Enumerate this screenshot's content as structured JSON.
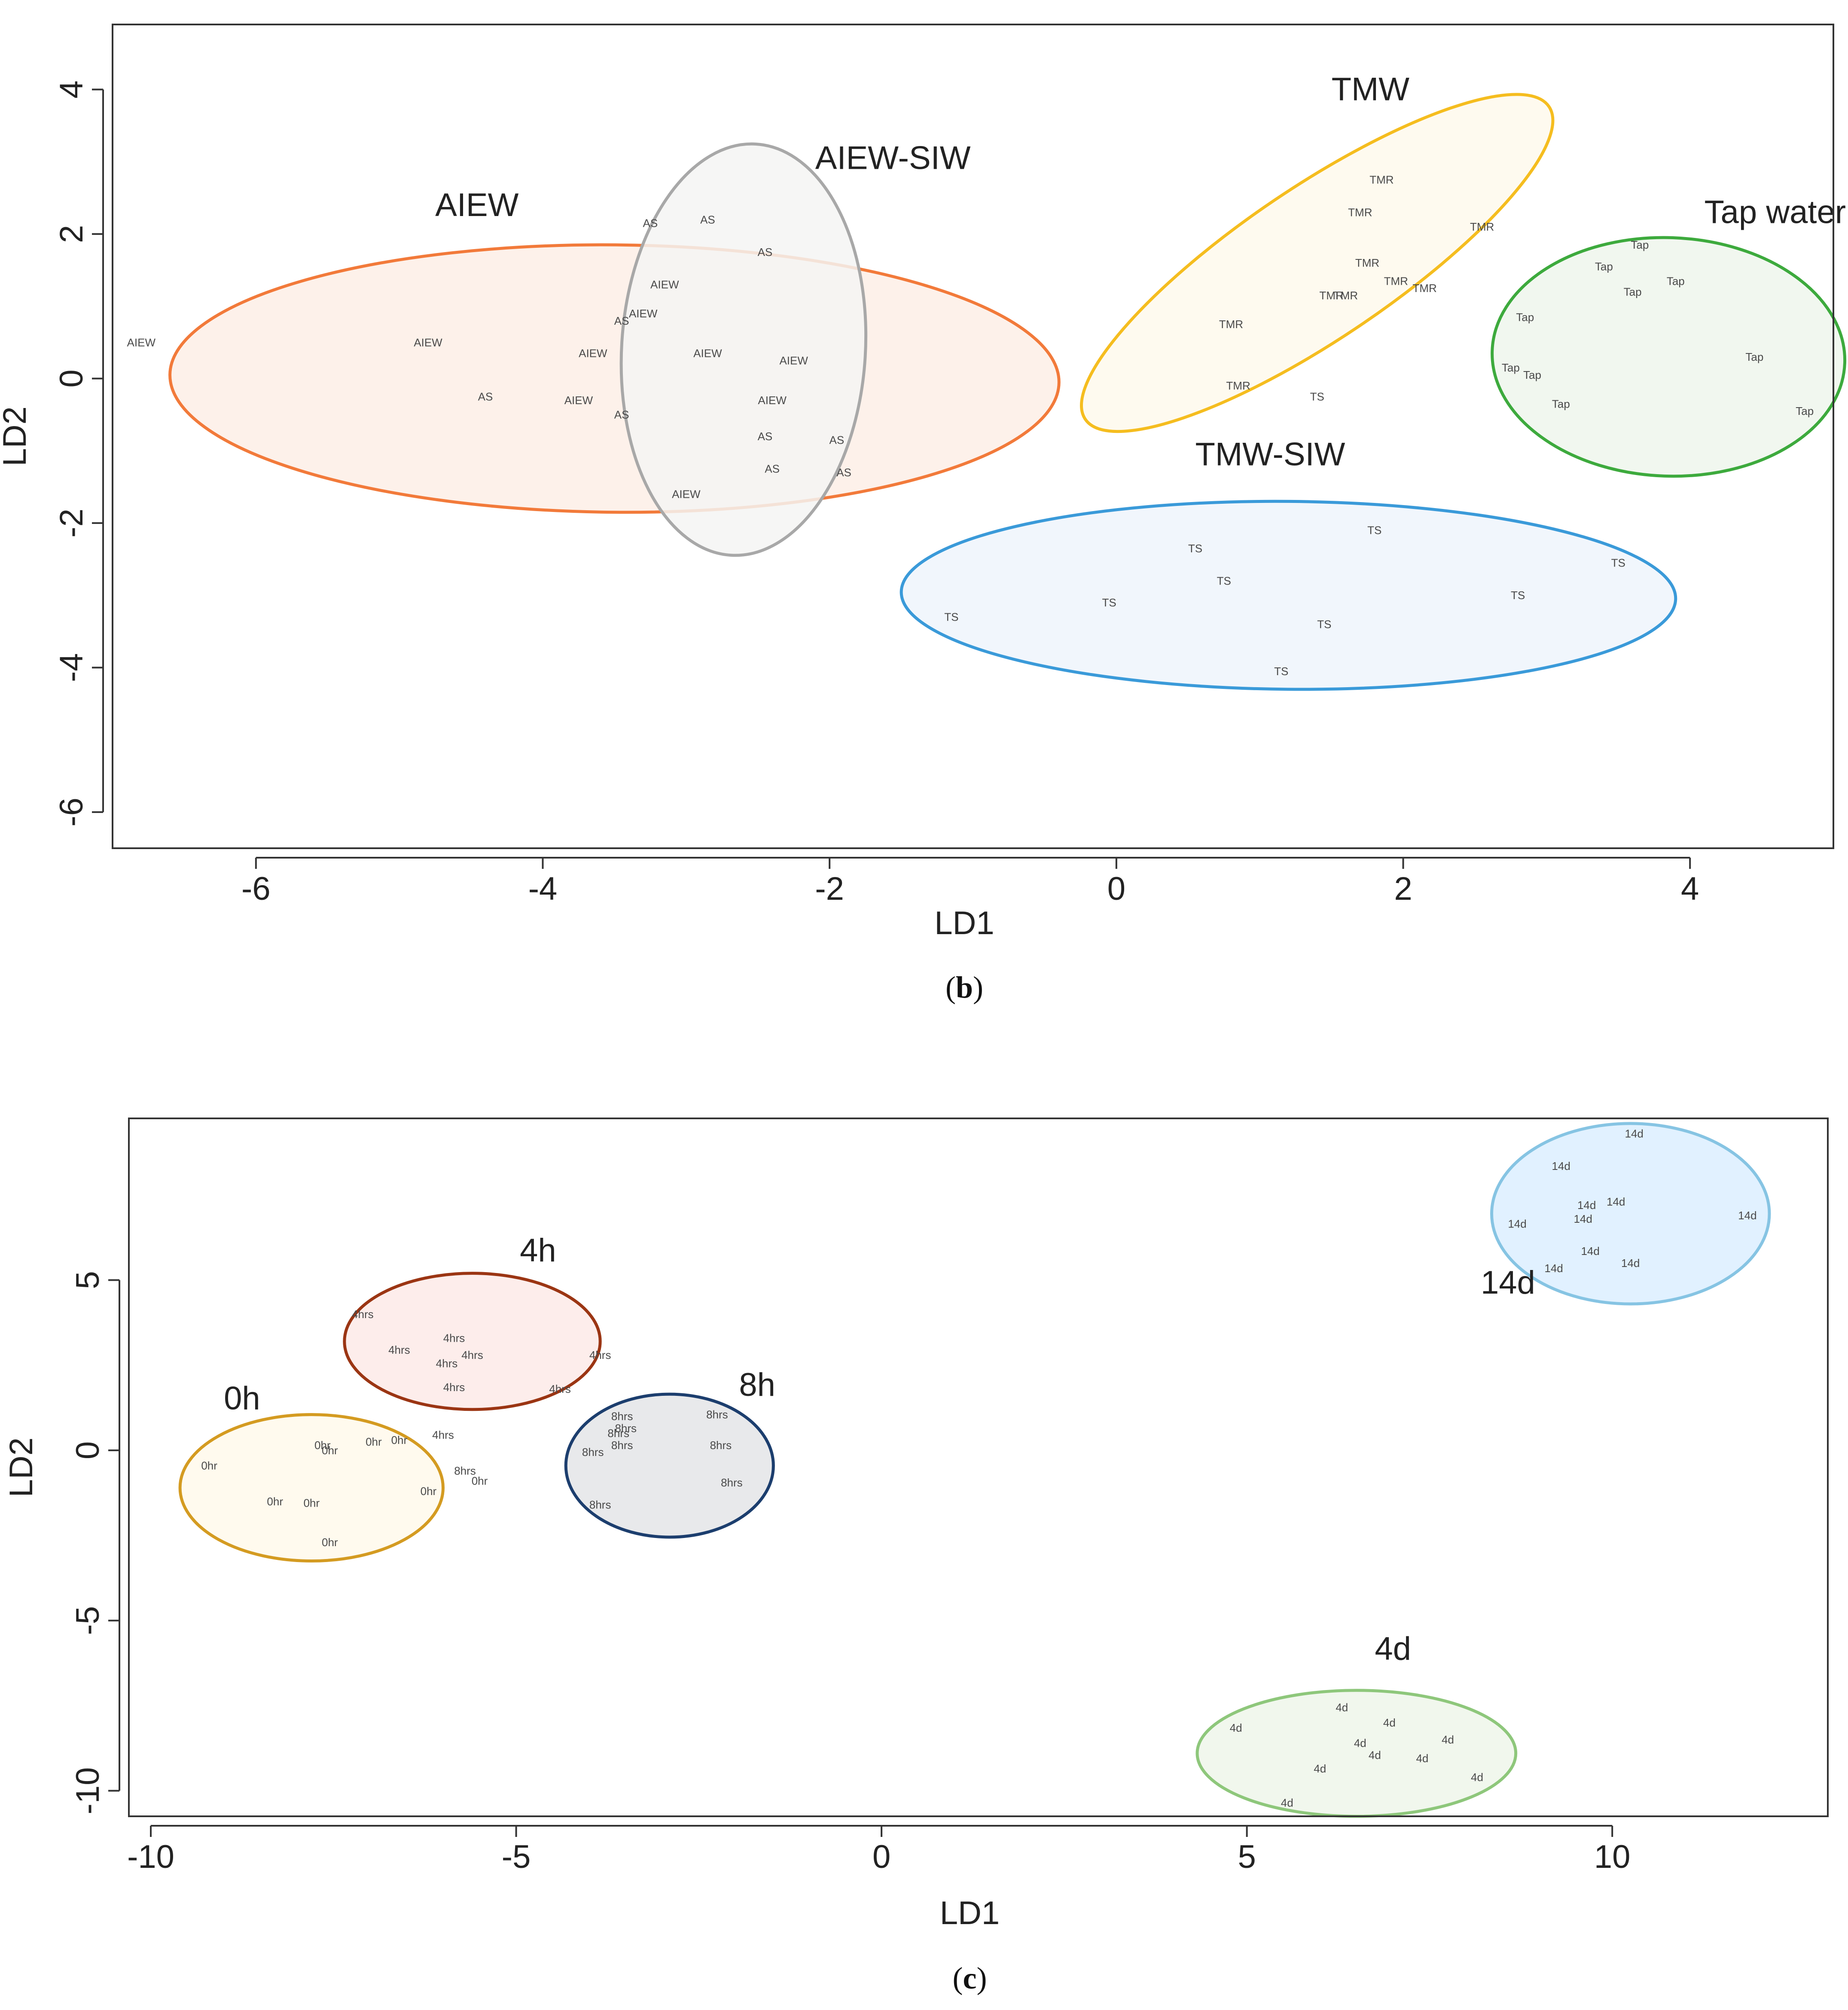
{
  "chart_data": [
    {
      "type": "scatter",
      "panel_caption": "(b)",
      "xlabel": "LD1",
      "ylabel": "LD2",
      "xlim": [
        -7.0,
        5.0
      ],
      "ylim": [
        -6.5,
        4.9
      ],
      "xticks": [
        -6,
        -4,
        -2,
        0,
        2,
        4
      ],
      "yticks": [
        -6,
        -4,
        -2,
        0,
        2,
        4
      ],
      "tick_labels_x": [
        "-6",
        "-4",
        "-2",
        "0",
        "2",
        "4"
      ],
      "tick_labels_y": [
        "-6",
        "-4",
        "-2",
        "0",
        "2",
        "4"
      ],
      "groups": [
        {
          "name": "AIEW",
          "color": "#f27a3a",
          "fill": "#fdeee6",
          "ellipse": {
            "cx": -3.5,
            "cy": 0.0,
            "rx": 3.1,
            "ry": 1.85,
            "angle": -0.5
          },
          "points": [
            {
              "label": "AIEW",
              "x": -6.8,
              "y": 0.5
            },
            {
              "label": "AIEW",
              "x": -4.8,
              "y": 0.5
            },
            {
              "label": "AS",
              "x": -4.4,
              "y": -0.25
            },
            {
              "label": "AIEW",
              "x": -3.65,
              "y": 0.35
            },
            {
              "label": "AIEW",
              "x": -3.75,
              "y": -0.3
            }
          ]
        },
        {
          "name": "AIEW-SIW",
          "color": "#a8a8a8",
          "fill": "#f5f4f3",
          "ellipse": {
            "cx": -2.6,
            "cy": 0.4,
            "rx": 0.85,
            "ry": 2.85,
            "angle": -3.5
          },
          "points": [
            {
              "label": "AS",
              "x": -3.25,
              "y": 2.15
            },
            {
              "label": "AS",
              "x": -2.85,
              "y": 2.2
            },
            {
              "label": "AS",
              "x": -2.45,
              "y": 1.75
            },
            {
              "label": "AIEW",
              "x": -3.15,
              "y": 1.3
            },
            {
              "label": "AIEW",
              "x": -3.3,
              "y": 0.9
            },
            {
              "label": "AS",
              "x": -3.45,
              "y": 0.8
            },
            {
              "label": "AIEW",
              "x": -2.85,
              "y": 0.35
            },
            {
              "label": "AIEW",
              "x": -2.25,
              "y": 0.25
            },
            {
              "label": "AIEW",
              "x": -2.4,
              "y": -0.3
            },
            {
              "label": "AS",
              "x": -3.45,
              "y": -0.5
            },
            {
              "label": "AS",
              "x": -2.45,
              "y": -0.8
            },
            {
              "label": "AS",
              "x": -1.95,
              "y": -0.85
            },
            {
              "label": "AS",
              "x": -2.4,
              "y": -1.25
            },
            {
              "label": "AS",
              "x": -1.9,
              "y": -1.3
            },
            {
              "label": "AIEW",
              "x": -3.0,
              "y": -1.6
            }
          ]
        },
        {
          "name": "TMW",
          "color": "#f5bd1f",
          "fill": "#fef9ec",
          "ellipse": {
            "cx": 1.4,
            "cy": 1.6,
            "rx": 1.95,
            "ry": 1.05,
            "angle": 34
          },
          "points": [
            {
              "label": "TMR",
              "x": 1.85,
              "y": 2.75
            },
            {
              "label": "TMR",
              "x": 1.7,
              "y": 2.3
            },
            {
              "label": "TMR",
              "x": 2.55,
              "y": 2.1
            },
            {
              "label": "TMR",
              "x": 1.75,
              "y": 1.6
            },
            {
              "label": "TMR",
              "x": 1.95,
              "y": 1.35
            },
            {
              "label": "TMR",
              "x": 2.15,
              "y": 1.25
            },
            {
              "label": "TMR",
              "x": 1.6,
              "y": 1.15
            },
            {
              "label": "TMR",
              "x": 1.5,
              "y": 1.15
            },
            {
              "label": "TMR",
              "x": 0.8,
              "y": 0.75
            },
            {
              "label": "TMR",
              "x": 0.85,
              "y": -0.1
            },
            {
              "label": "TS",
              "x": 1.4,
              "y": -0.25
            }
          ]
        },
        {
          "name": "Tap water",
          "color": "#3daa3d",
          "fill": "#eef6ec",
          "ellipse": {
            "cx": 3.85,
            "cy": 0.3,
            "rx": 1.23,
            "ry": 1.65,
            "angle": -2
          },
          "points": [
            {
              "label": "Tap",
              "x": 3.65,
              "y": 1.85
            },
            {
              "label": "Tap",
              "x": 3.4,
              "y": 1.55
            },
            {
              "label": "Tap",
              "x": 3.9,
              "y": 1.35
            },
            {
              "label": "Tap",
              "x": 3.6,
              "y": 1.2
            },
            {
              "label": "Tap",
              "x": 2.85,
              "y": 0.85
            },
            {
              "label": "Tap",
              "x": 4.45,
              "y": 0.3
            },
            {
              "label": "Tap",
              "x": 2.75,
              "y": 0.15
            },
            {
              "label": "Tap",
              "x": 2.9,
              "y": 0.05
            },
            {
              "label": "Tap",
              "x": 3.1,
              "y": -0.35
            },
            {
              "label": "Tap",
              "x": 4.8,
              "y": -0.45
            }
          ]
        },
        {
          "name": "TMW-SIW",
          "color": "#3a9ad9",
          "fill": "#eef4fb",
          "ellipse": {
            "cx": 1.2,
            "cy": -3.0,
            "rx": 2.7,
            "ry": 1.3,
            "angle": -0.5
          },
          "points": [
            {
              "label": "TS",
              "x": 1.8,
              "y": -2.1
            },
            {
              "label": "TS",
              "x": 0.55,
              "y": -2.35
            },
            {
              "label": "TS",
              "x": 3.5,
              "y": -2.55
            },
            {
              "label": "TS",
              "x": 0.75,
              "y": -2.8
            },
            {
              "label": "TS",
              "x": 2.8,
              "y": -3.0
            },
            {
              "label": "TS",
              "x": -0.05,
              "y": -3.1
            },
            {
              "label": "TS",
              "x": -1.15,
              "y": -3.3
            },
            {
              "label": "TS",
              "x": 1.45,
              "y": -3.4
            },
            {
              "label": "TS",
              "x": 1.15,
              "y": -4.05
            }
          ]
        }
      ],
      "group_label_anchors": [
        {
          "text": "AIEW",
          "x": -4.75,
          "y": 2.25
        },
        {
          "text": "AIEW-SIW",
          "x": -2.1,
          "y": 2.9
        },
        {
          "text": "TMW",
          "x": 1.5,
          "y": 3.85
        },
        {
          "text": "Tap water",
          "x": 4.1,
          "y": 2.15
        },
        {
          "text": "TMW-SIW",
          "x": 0.55,
          "y": -1.2
        }
      ]
    },
    {
      "type": "scatter",
      "panel_caption": "(c)",
      "xlabel": "LD1",
      "ylabel": "LD2",
      "xlim": [
        -10.3,
        12.95
      ],
      "ylim": [
        -10.75,
        9.75
      ],
      "xticks": [
        -10,
        -5,
        0,
        5,
        10
      ],
      "yticks": [
        -10,
        -5,
        0,
        5
      ],
      "tick_labels_x": [
        "-10",
        "-5",
        "0",
        "5",
        "10"
      ],
      "tick_labels_y": [
        "-10",
        "-5",
        "0",
        "5"
      ],
      "groups": [
        {
          "name": "0h",
          "color": "#d49b21",
          "fill": "#fff9eb",
          "ellipse": {
            "cx": -7.8,
            "cy": -1.1,
            "rx": 1.8,
            "ry": 2.15,
            "angle": 0
          },
          "points": [
            {
              "label": "0hr",
              "x": -7.65,
              "y": 0.15
            },
            {
              "label": "0hr",
              "x": -7.55,
              "y": 0.0
            },
            {
              "label": "0hr",
              "x": -6.95,
              "y": 0.25
            },
            {
              "label": "0hr",
              "x": -6.6,
              "y": 0.3
            },
            {
              "label": "0hr",
              "x": -9.2,
              "y": -0.45
            },
            {
              "label": "0hr",
              "x": -6.2,
              "y": -1.2
            },
            {
              "label": "0hr",
              "x": -8.3,
              "y": -1.5
            },
            {
              "label": "0hr",
              "x": -7.8,
              "y": -1.55
            },
            {
              "label": "0hr",
              "x": -7.55,
              "y": -2.7
            },
            {
              "label": "0hr",
              "x": -5.5,
              "y": -0.9
            }
          ]
        },
        {
          "name": "4h",
          "color": "#9b3513",
          "fill": "#fdeae8",
          "ellipse": {
            "cx": -5.6,
            "cy": 3.2,
            "rx": 1.75,
            "ry": 2.0,
            "angle": 0
          },
          "points": [
            {
              "label": "4hrs",
              "x": -7.1,
              "y": 4.0
            },
            {
              "label": "4hrs",
              "x": -5.85,
              "y": 3.3
            },
            {
              "label": "4hrs",
              "x": -6.6,
              "y": 2.95
            },
            {
              "label": "4hrs",
              "x": -5.6,
              "y": 2.8
            },
            {
              "label": "4hrs",
              "x": -5.95,
              "y": 2.55
            },
            {
              "label": "4hrs",
              "x": -3.85,
              "y": 2.8
            },
            {
              "label": "4hrs",
              "x": -5.85,
              "y": 1.85
            },
            {
              "label": "4hrs",
              "x": -4.4,
              "y": 1.8
            },
            {
              "label": "4hrs",
              "x": -6.0,
              "y": 0.45
            }
          ]
        },
        {
          "name": "8h",
          "color": "#1c3e6e",
          "fill": "#e4e5e8",
          "ellipse": {
            "cx": -2.9,
            "cy": -0.45,
            "rx": 1.42,
            "ry": 2.1,
            "angle": 0
          },
          "points": [
            {
              "label": "8hrs",
              "x": -3.55,
              "y": 1.0
            },
            {
              "label": "8hrs",
              "x": -3.5,
              "y": 0.65
            },
            {
              "label": "8hrs",
              "x": -3.6,
              "y": 0.5
            },
            {
              "label": "8hrs",
              "x": -2.25,
              "y": 1.05
            },
            {
              "label": "8hrs",
              "x": -3.55,
              "y": 0.15
            },
            {
              "label": "8hrs",
              "x": -2.2,
              "y": 0.15
            },
            {
              "label": "8hrs",
              "x": -3.95,
              "y": -0.05
            },
            {
              "label": "8hrs",
              "x": -2.05,
              "y": -0.95
            },
            {
              "label": "8hrs",
              "x": -3.85,
              "y": -1.6
            },
            {
              "label": "8hrs",
              "x": -5.7,
              "y": -0.6
            }
          ]
        },
        {
          "name": "14d",
          "color": "#86c4e3",
          "fill": "#dcefff",
          "ellipse": {
            "cx": 10.25,
            "cy": 6.95,
            "rx": 1.9,
            "ry": 2.65,
            "angle": 0
          },
          "points": [
            {
              "label": "14d",
              "x": 10.3,
              "y": 9.3
            },
            {
              "label": "14d",
              "x": 9.3,
              "y": 8.35
            },
            {
              "label": "14d",
              "x": 9.65,
              "y": 7.2
            },
            {
              "label": "14d",
              "x": 10.05,
              "y": 7.3
            },
            {
              "label": "14d",
              "x": 9.6,
              "y": 6.8
            },
            {
              "label": "14d",
              "x": 8.7,
              "y": 6.65
            },
            {
              "label": "14d",
              "x": 11.85,
              "y": 6.9
            },
            {
              "label": "14d",
              "x": 9.7,
              "y": 5.85
            },
            {
              "label": "14d",
              "x": 9.2,
              "y": 5.35
            },
            {
              "label": "14d",
              "x": 10.25,
              "y": 5.5
            }
          ]
        },
        {
          "name": "4d",
          "color": "#8ec77b",
          "fill": "#eef6ea",
          "ellipse": {
            "cx": 6.5,
            "cy": -8.9,
            "rx": 2.18,
            "ry": 1.85,
            "angle": 0
          },
          "points": [
            {
              "label": "4d",
              "x": 6.3,
              "y": -7.55
            },
            {
              "label": "4d",
              "x": 6.95,
              "y": -8.0
            },
            {
              "label": "4d",
              "x": 4.85,
              "y": -8.15
            },
            {
              "label": "4d",
              "x": 7.75,
              "y": -8.5
            },
            {
              "label": "4d",
              "x": 6.55,
              "y": -8.6
            },
            {
              "label": "4d",
              "x": 6.75,
              "y": -8.95
            },
            {
              "label": "4d",
              "x": 7.4,
              "y": -9.05
            },
            {
              "label": "4d",
              "x": 6.0,
              "y": -9.35
            },
            {
              "label": "4d",
              "x": 8.15,
              "y": -9.6
            },
            {
              "label": "4d",
              "x": 5.55,
              "y": -10.35
            }
          ]
        }
      ],
      "group_label_anchors": [
        {
          "text": "0h",
          "x": -9.0,
          "y": 1.2
        },
        {
          "text": "4h",
          "x": -4.95,
          "y": 5.55
        },
        {
          "text": "8h",
          "x": -1.95,
          "y": 1.6
        },
        {
          "text": "14d",
          "x": 8.2,
          "y": 4.6
        },
        {
          "text": "4d",
          "x": 6.75,
          "y": -6.15
        }
      ]
    }
  ]
}
